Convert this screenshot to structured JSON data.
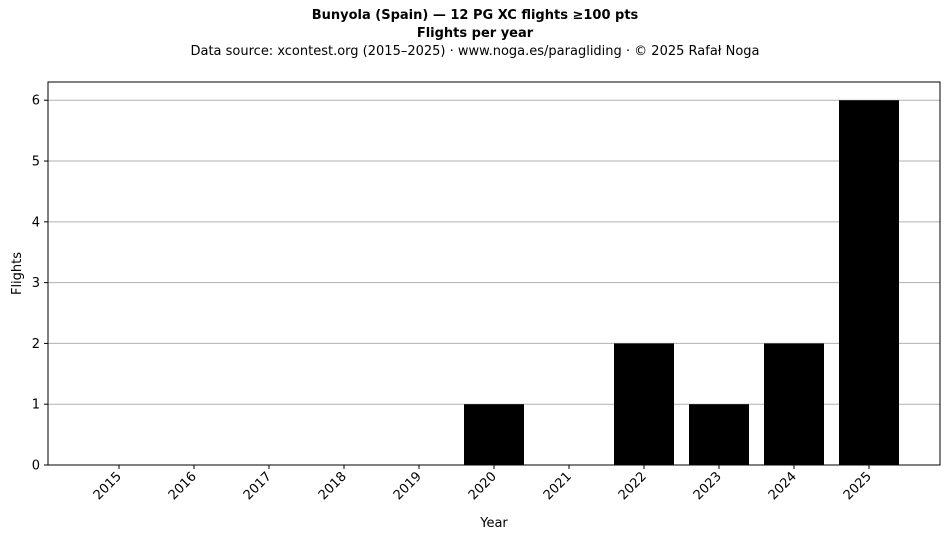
{
  "chart_data": {
    "type": "bar",
    "title": "Bunyola (Spain)  —  12 PG XC flights ≥100 pts",
    "subtitle": "Flights per year",
    "source_note": "Data source: xcontest.org (2015–2025)  ·  www.noga.es/paragliding  ·  © 2025 Rafał Noga",
    "xlabel": "Year",
    "ylabel": "Flights",
    "categories": [
      "2015",
      "2016",
      "2017",
      "2018",
      "2019",
      "2020",
      "2021",
      "2022",
      "2023",
      "2024",
      "2025"
    ],
    "values": [
      0,
      0,
      0,
      0,
      0,
      1,
      0,
      2,
      1,
      2,
      6
    ],
    "ylim": [
      0,
      6.3
    ],
    "yticks": [
      0,
      1,
      2,
      3,
      4,
      5,
      6
    ],
    "grid": "horizontal",
    "bar_color": "#000000",
    "grid_color": "#b0b0b0"
  }
}
